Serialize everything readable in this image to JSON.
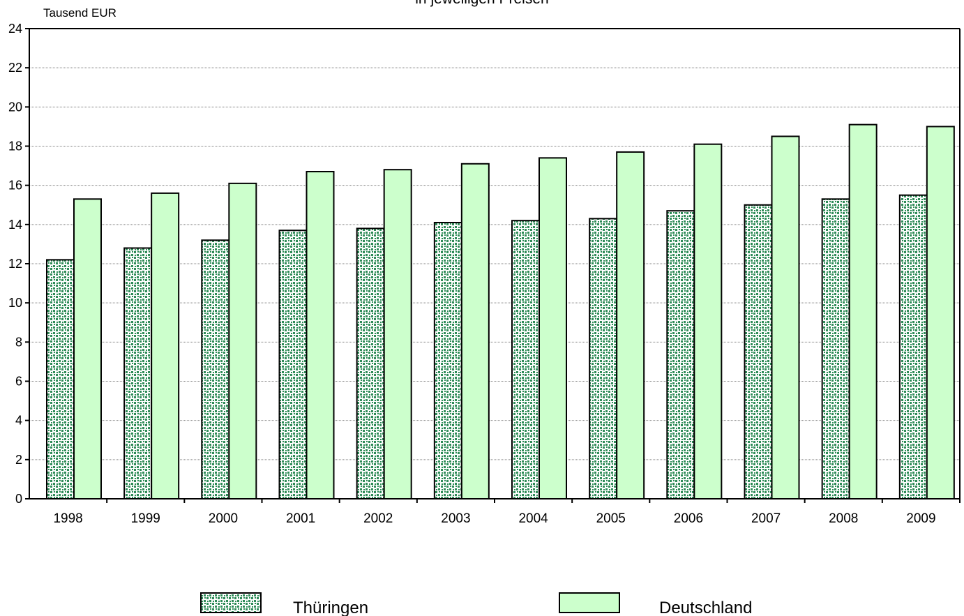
{
  "chart_data": {
    "type": "bar",
    "subtitle": "- in jeweiligen Preisen -",
    "unit_label": "Tausend EUR",
    "categories": [
      "1998",
      "1999",
      "2000",
      "2001",
      "2002",
      "2003",
      "2004",
      "2005",
      "2006",
      "2007",
      "2008",
      "2009"
    ],
    "series": [
      {
        "name": "Thüringen",
        "values": [
          12.2,
          12.8,
          13.2,
          13.7,
          13.8,
          14.1,
          14.2,
          14.3,
          14.7,
          15.0,
          15.3,
          15.5
        ]
      },
      {
        "name": "Deutschland",
        "values": [
          15.3,
          15.6,
          16.1,
          16.7,
          16.8,
          17.1,
          17.4,
          17.7,
          18.1,
          18.5,
          19.1,
          19.0
        ]
      }
    ],
    "ylim": [
      0,
      24
    ],
    "yticks": [
      0,
      2,
      4,
      6,
      8,
      10,
      12,
      14,
      16,
      18,
      20,
      22,
      24
    ],
    "grid": true,
    "legend_position": "bottom",
    "colors": {
      "thueringen_base": "#ffffff",
      "thueringen_dots": "#2e8b57",
      "deutschland_fill": "#ccffcc",
      "outline": "#000000",
      "gridline": "#7f7f7f"
    }
  }
}
